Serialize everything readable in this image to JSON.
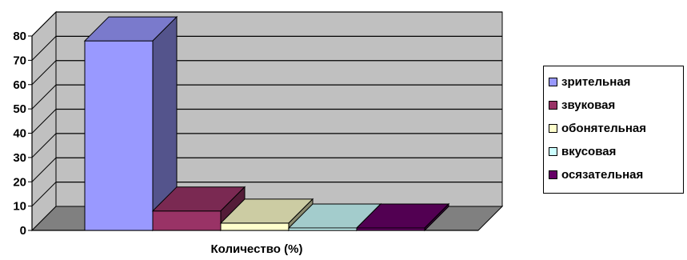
{
  "chart_data": {
    "type": "bar",
    "style": "3d-clustered-column",
    "xlabel": "Количество (%)",
    "ylabel": "",
    "ylim": [
      0,
      80
    ],
    "yticks": [
      "0",
      "10",
      "20",
      "30",
      "40",
      "50",
      "60",
      "70",
      "80"
    ],
    "grid": true,
    "legend_position": "right",
    "series": [
      {
        "name": "зрительная",
        "values": [
          78
        ],
        "color": "#9999ff"
      },
      {
        "name": "звуковая",
        "values": [
          8
        ],
        "color": "#993366"
      },
      {
        "name": "обонятельная",
        "values": [
          3
        ],
        "color": "#ffffcc"
      },
      {
        "name": "вкусовая",
        "values": [
          1
        ],
        "color": "#ccffff"
      },
      {
        "name": "осязательная",
        "values": [
          1
        ],
        "color": "#660066"
      }
    ],
    "colors": {
      "wall": "#c0c0c0",
      "floor": "#808080",
      "gridline": "#000000"
    }
  }
}
